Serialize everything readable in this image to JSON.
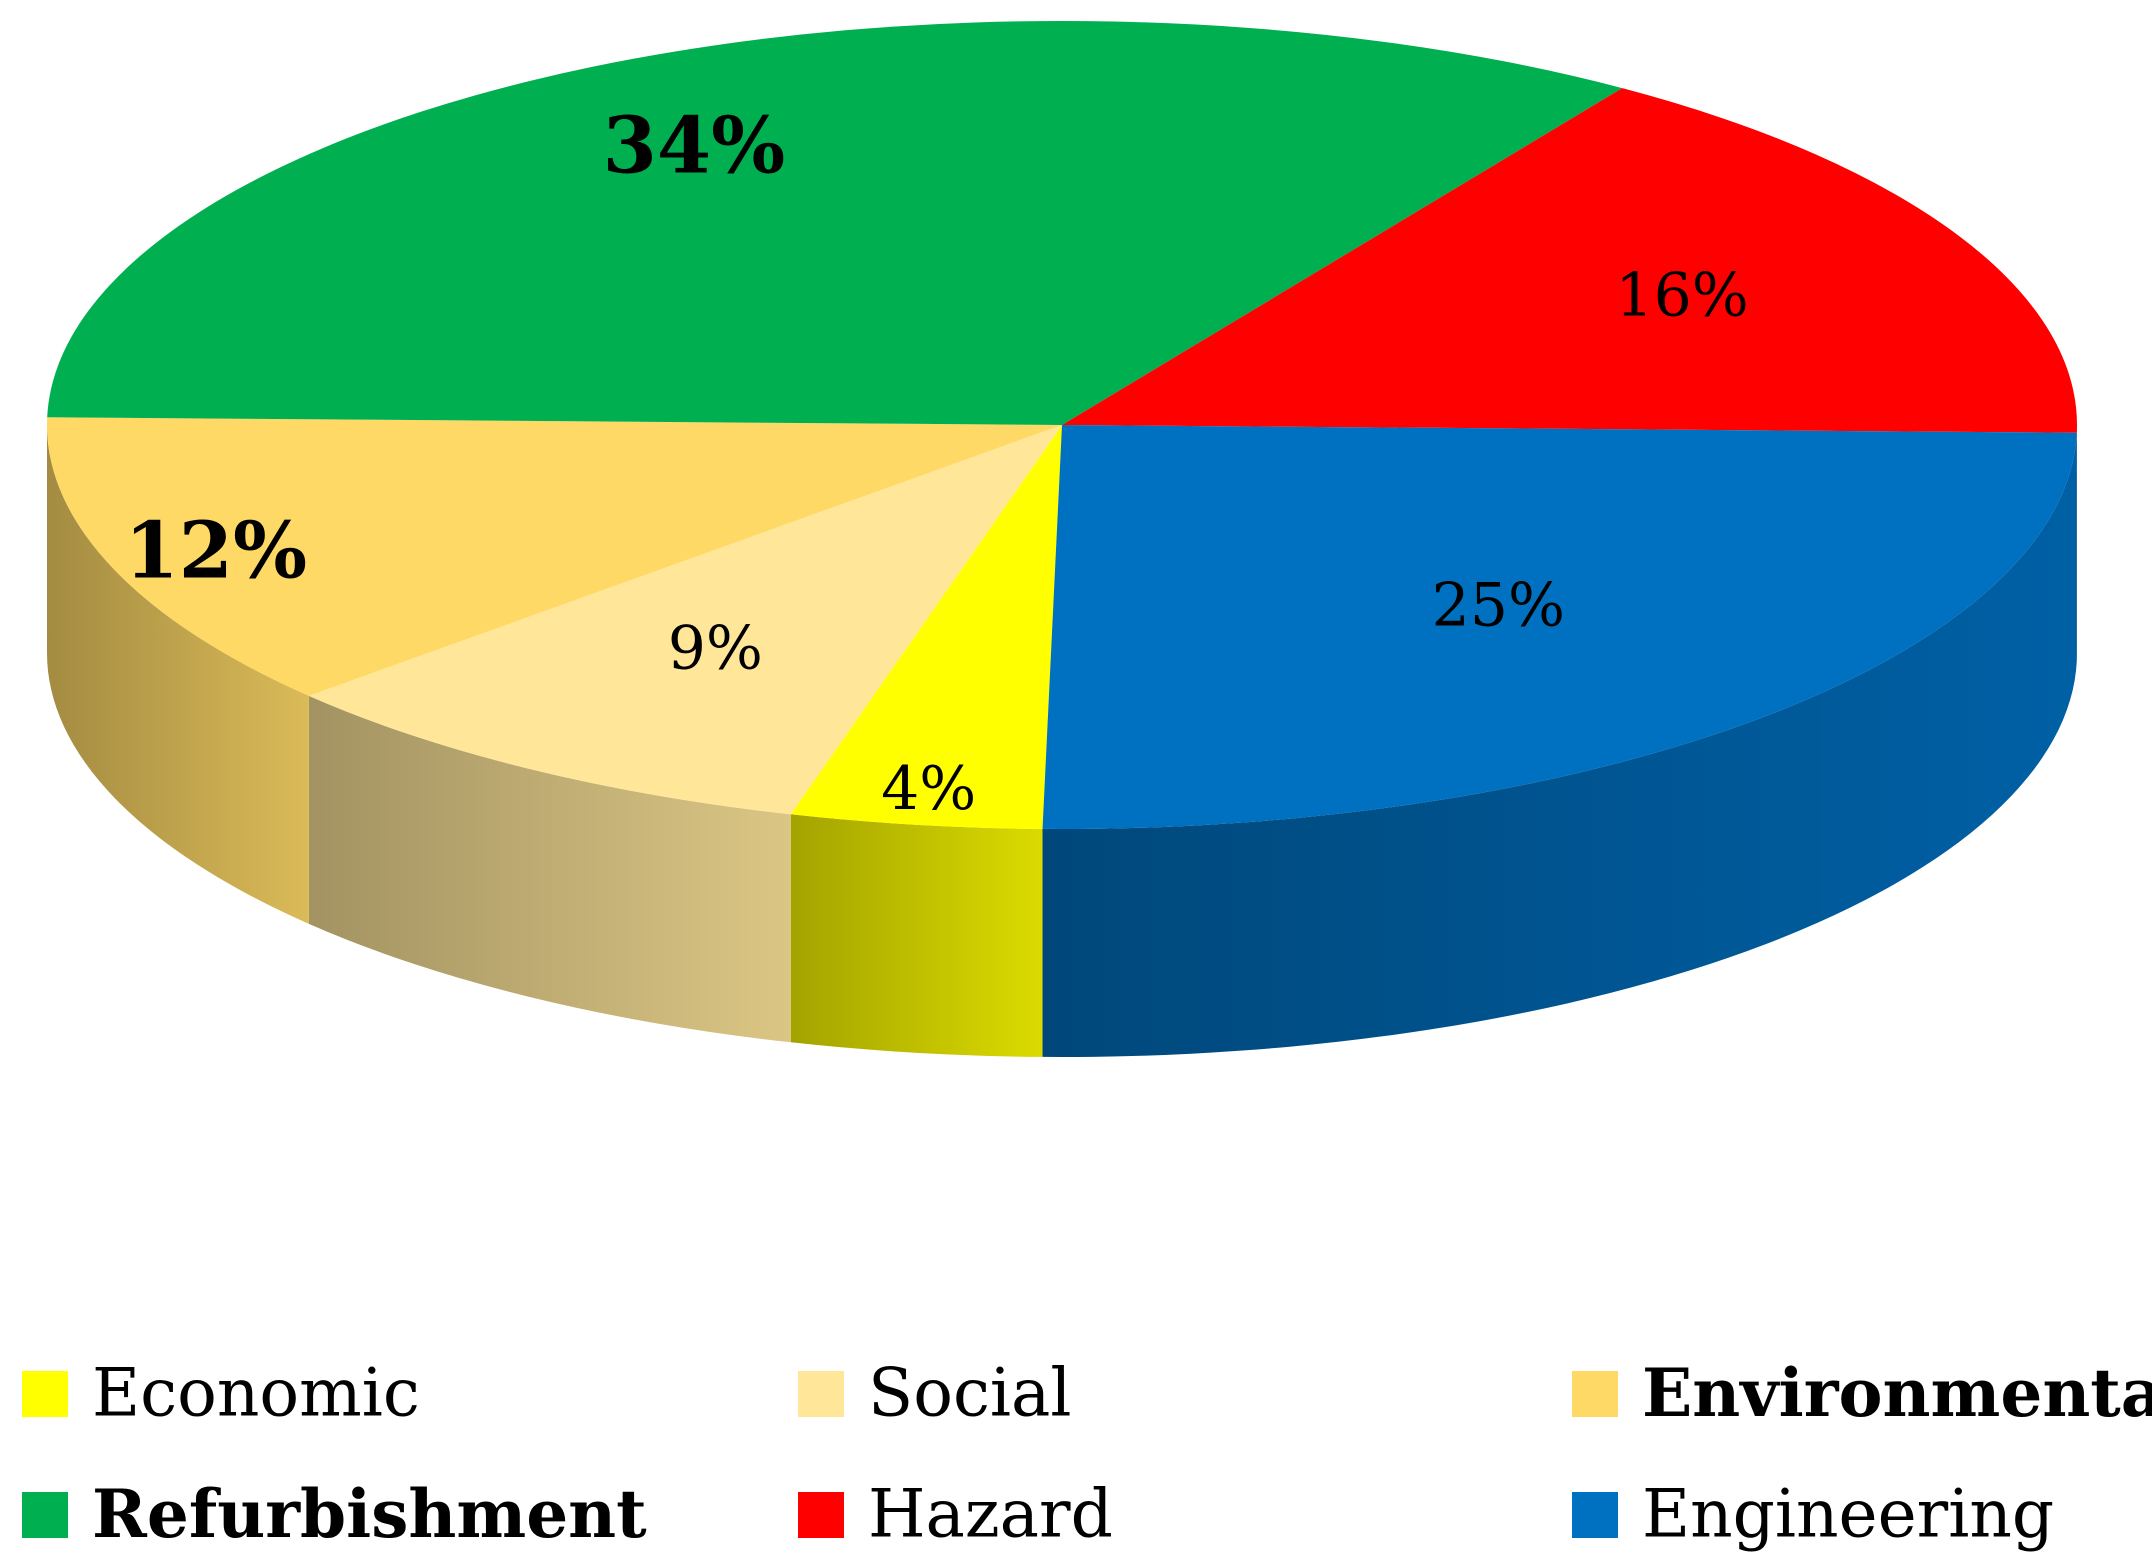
{
  "chart_data": {
    "type": "pie",
    "style": "3d",
    "title": "",
    "legend_placement": "bottom",
    "slices": [
      {
        "name": "Economic",
        "value": 4,
        "label": "4%",
        "color": "#FFFF00",
        "bold": false
      },
      {
        "name": "Social",
        "value": 9,
        "label": "9%",
        "color": "#FFE699",
        "bold": false
      },
      {
        "name": "Environmental",
        "value": 12,
        "label": "12%",
        "color": "#FFD966",
        "bold": true
      },
      {
        "name": "Refurbishment",
        "value": 34,
        "label": "34%",
        "color": "#00B050",
        "bold": true
      },
      {
        "name": "Hazard",
        "value": 16,
        "label": "16%",
        "color": "#FF0000",
        "bold": false
      },
      {
        "name": "Engineering",
        "value": 25,
        "label": "25%",
        "color": "#0070C0",
        "bold": false
      }
    ]
  }
}
